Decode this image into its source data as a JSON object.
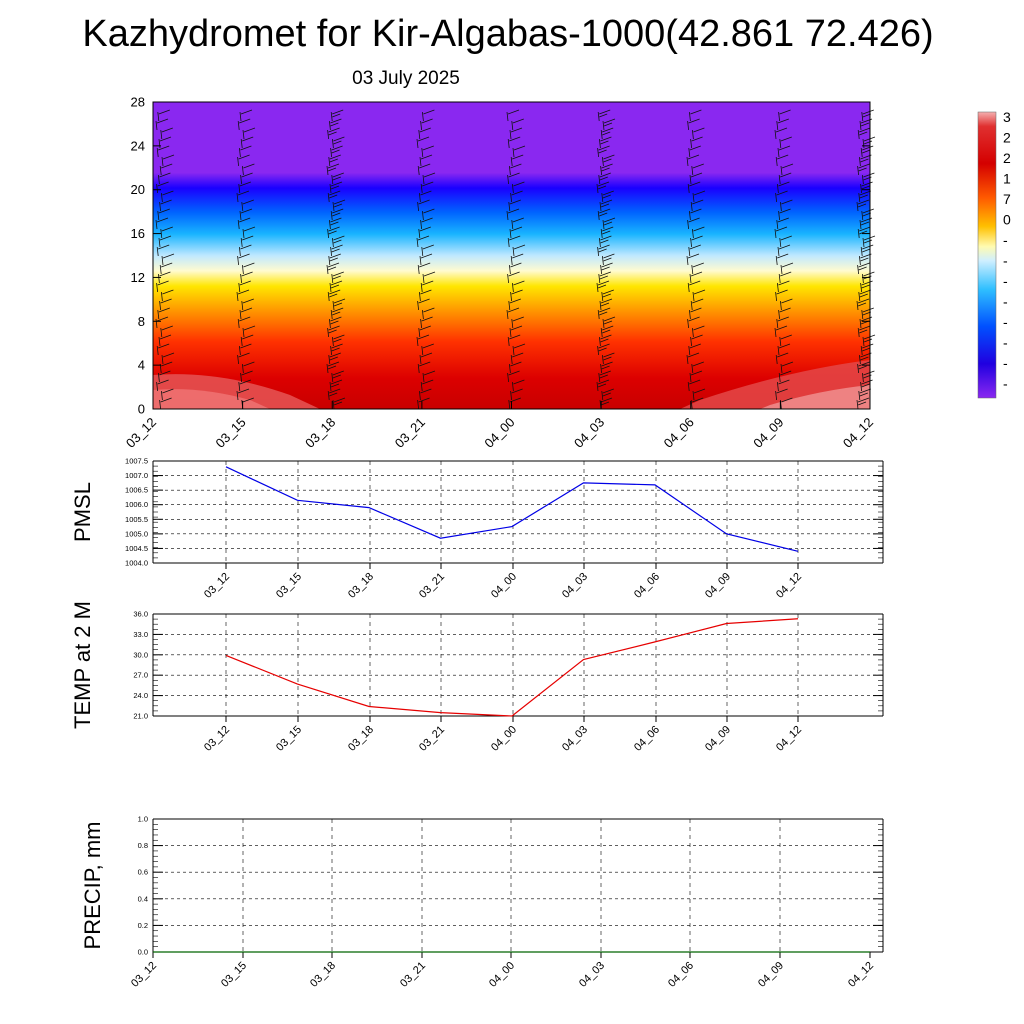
{
  "title": "Kazhydromet for Kir-Algabas-1000(42.861 72.426)",
  "subtitle": "03 July 2025",
  "colors": {
    "pmsl_line": "#0000e6",
    "temp_line": "#e60000",
    "precip_line": "#006400",
    "grid": "#000000"
  },
  "legend": {
    "labels": [
      "3",
      "2",
      "2",
      "1",
      "7",
      "0",
      "-",
      "-",
      "-",
      "-",
      "-",
      "-",
      "-",
      "-"
    ],
    "colors": [
      "#f08a8a",
      "#d40000",
      "#ff6a00",
      "#ffd400",
      "#fffbb0",
      "#bfe8ff",
      "#2fbfff",
      "#0050ff",
      "#2000e0",
      "#8a28f0"
    ]
  },
  "chart_data": [
    {
      "type": "heatmap",
      "name": "vertical-section",
      "xcategories": [
        "03_12",
        "03_15",
        "03_18",
        "03_21",
        "04_00",
        "04_03",
        "04_06",
        "04_09",
        "04_12"
      ],
      "ylim": [
        0,
        28
      ],
      "yticks": [
        "0",
        "4",
        "8",
        "12",
        "16",
        "20",
        "24",
        "28"
      ]
    },
    {
      "type": "line",
      "ylabel": "PMSL",
      "categories": [
        "03_12",
        "03_15",
        "03_18",
        "03_21",
        "04_00",
        "04_03",
        "04_06",
        "04_09",
        "04_12"
      ],
      "values": [
        1007.3,
        1006.15,
        1005.9,
        1004.85,
        1005.25,
        1006.75,
        1006.68,
        1005.0,
        1004.4
      ],
      "ylim": [
        1004.0,
        1007.5
      ],
      "yticks": [
        "1004.0",
        "1004.5",
        "1005.0",
        "1005.5",
        "1006.0",
        "1006.5",
        "1007.0",
        "1007.5"
      ]
    },
    {
      "type": "line",
      "ylabel": "TEMP at 2 M",
      "categories": [
        "03_12",
        "03_15",
        "03_18",
        "03_21",
        "04_00",
        "04_03",
        "04_06",
        "04_09",
        "04_12"
      ],
      "values": [
        29.9,
        25.7,
        22.4,
        21.5,
        21.0,
        29.3,
        31.9,
        34.6,
        35.3
      ],
      "ylim": [
        21.0,
        36.0
      ],
      "yticks": [
        "21.0",
        "24.0",
        "27.0",
        "30.0",
        "33.0",
        "36.0"
      ]
    },
    {
      "type": "line",
      "ylabel": "PRECIP, mm",
      "categories": [
        "03_12",
        "03_15",
        "03_18",
        "03_21",
        "04_00",
        "04_03",
        "04_06",
        "04_09",
        "04_12"
      ],
      "values": [
        0,
        0,
        0,
        0,
        0,
        0,
        0,
        0,
        0
      ],
      "ylim": [
        0.0,
        1.0
      ],
      "yticks": [
        "0.0",
        "0.2",
        "0.4",
        "0.6",
        "0.8",
        "1.0"
      ]
    }
  ]
}
